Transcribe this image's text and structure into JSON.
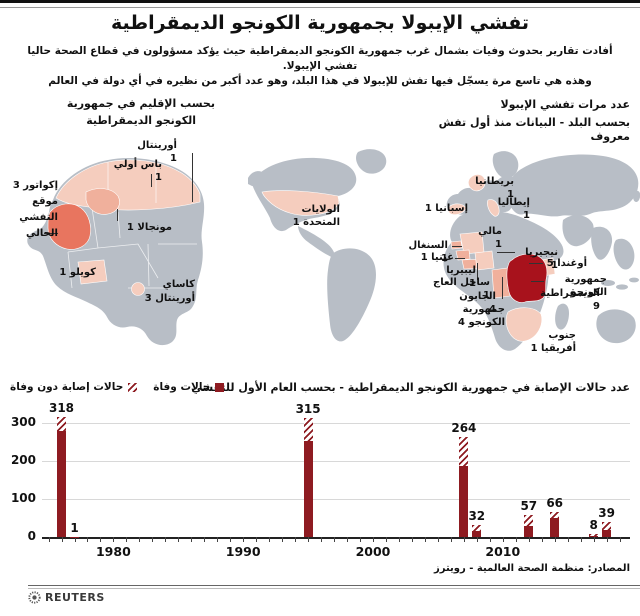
{
  "meta": {
    "title": "تفشي الإيبولا بجمهورية الكونجو الديمقراطية",
    "subtitle1": "أفادت تقارير بحدوث وفيات بشمال غرب جمهورية الكونجو الديمقراطية حيث يؤكد مسؤولون في قطاع الصحة حاليا تفشي الإيبولا.",
    "subtitle2": "وهذه هي تاسع مرة يسجّل فيها تفش للإيبولا في هذا البلد، وهو عدد أكبر من نظيره في أي دولة في العالم"
  },
  "region_map": {
    "header1": "بحسب الإقليم في جمهورية",
    "header2": "الكونجو الديمقراطية",
    "labels": {
      "orientale": "أورينتال 1",
      "bas_uele": "باس أولي 1",
      "equateur": "إكواتور 3",
      "equateur_note1": "موقع",
      "equateur_note2": "التفشي",
      "equateur_note3": "الحالي",
      "mongala": "مونجالا 1",
      "kwilu": "كويلو 1",
      "kasai1": "كاساي",
      "kasai2": "أورينتال 3"
    }
  },
  "world_map": {
    "header1": "عدد مرات تفشي الإيبولا",
    "header2": "بحسب البلد - البيانات منذ أول تفش معروف",
    "labels": {
      "usa": "الولايات المتحدة 1",
      "uk": "بريطانيا 1",
      "italy": "إيطاليا 1",
      "spain": "إسبانيا 1",
      "mali": "مالي 1",
      "senegal": "السنغال 1",
      "guinea": "غينيا 1",
      "nigeria": "نيجيريا 1",
      "liberia": "ليبيريا 1",
      "ivory_coast": "ساحل العاج 1",
      "gabon": "الجابون 4",
      "congo": "جمهورية الكونجو 4",
      "uganda": "أوغندا 5",
      "drc1": "جمهورية الكونجو",
      "drc2": "الديمقراطية 9",
      "south_africa": "جنوب أفريقيا 1"
    }
  },
  "chart_data": {
    "type": "bar",
    "stacked": true,
    "title": "عدد حالات الإصابة في جمهورية الكونجو الديمقراطية - بحسب العام الأول للتفشي",
    "legend": [
      {
        "name": "حالات وفاة",
        "style": "solid"
      },
      {
        "name": "حالات إصابة دون وفاة",
        "style": "hatched"
      }
    ],
    "x": [
      1976,
      1977,
      1995,
      2007,
      2008,
      2012,
      2014,
      2017,
      2018
    ],
    "totals": [
      318,
      1,
      315,
      264,
      32,
      57,
      66,
      8,
      39
    ],
    "deaths": [
      280,
      1,
      254,
      187,
      15,
      29,
      49,
      4,
      19
    ],
    "xlim": [
      1974.5,
      2019.8
    ],
    "ylim": [
      0,
      330
    ],
    "yticks": [
      0,
      100,
      200,
      300
    ],
    "xticks_labeled": [
      1980,
      1990,
      2000,
      2010
    ],
    "tick_years": [
      1975,
      2019
    ],
    "grid": true,
    "legend_position": "top-left"
  },
  "footer": {
    "source": "المصادر: منظمة الصحة العالمية - رويترز",
    "logo": "REUTERS"
  },
  "colors": {
    "bar_red": "#8e1b21",
    "map_red": "#a8121c",
    "outbreak_salmon": "#e8755f",
    "highlight_pink": "#f5cdbe",
    "highlight_pink_strong": "#f0b09c",
    "map_gray": "#b8bec6"
  }
}
